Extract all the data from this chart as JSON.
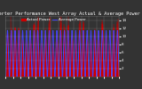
{
  "title": "Solar PV/Inverter Performance West Array Actual & Average Power Output",
  "title_fontsize": 3.8,
  "background_color": "#333333",
  "plot_bg_color": "#333333",
  "grid_color": "#ffffff",
  "bar_color": "#cc0000",
  "avg_line_color": "#4444ff",
  "ytick_fontsize": 3.0,
  "xtick_fontsize": 2.2,
  "yticks_right": [
    2,
    4,
    6,
    8,
    10,
    12,
    14
  ],
  "ylim": [
    0,
    15
  ],
  "n_days": 30,
  "pts_per_day": 24,
  "legend_actual_color": "#cc0000",
  "legend_avg_color": "#4444ff",
  "legend_fontsize": 3.0,
  "title_color": "#ffffff",
  "tick_color": "#ffffff",
  "spine_color": "#555555"
}
